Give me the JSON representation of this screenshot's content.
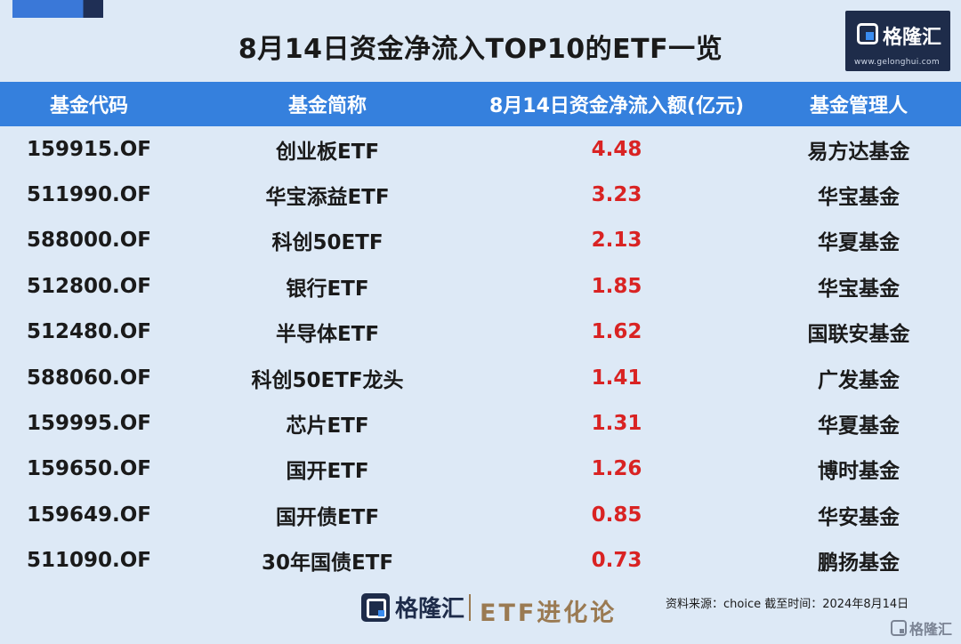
{
  "title": "8月14日资金净流入TOP10的ETF一览",
  "logo": {
    "name": "格隆汇",
    "url": "www.gelonghui.com",
    "icon": "gelonghui-logo-icon"
  },
  "table": {
    "headers": [
      "基金代码",
      "基金简称",
      "8月14日资金净流入额(亿元)",
      "基金管理人"
    ],
    "rows": [
      {
        "code": "159915.OF",
        "name": "创业板ETF",
        "inflow": "4.48",
        "manager": "易方达基金"
      },
      {
        "code": "511990.OF",
        "name": "华宝添益ETF",
        "inflow": "3.23",
        "manager": "华宝基金"
      },
      {
        "code": "588000.OF",
        "name": "科创50ETF",
        "inflow": "2.13",
        "manager": "华夏基金"
      },
      {
        "code": "512800.OF",
        "name": "银行ETF",
        "inflow": "1.85",
        "manager": "华宝基金"
      },
      {
        "code": "512480.OF",
        "name": "半导体ETF",
        "inflow": "1.62",
        "manager": "国联安基金"
      },
      {
        "code": "588060.OF",
        "name": "科创50ETF龙头",
        "inflow": "1.41",
        "manager": "广发基金"
      },
      {
        "code": "159995.OF",
        "name": "芯片ETF",
        "inflow": "1.31",
        "manager": "华夏基金"
      },
      {
        "code": "159650.OF",
        "name": "国开ETF",
        "inflow": "1.26",
        "manager": "博时基金"
      },
      {
        "code": "159649.OF",
        "name": "国开债ETF",
        "inflow": "0.85",
        "manager": "华安基金"
      },
      {
        "code": "511090.OF",
        "name": "30年国债ETF",
        "inflow": "0.73",
        "manager": "鹏扬基金"
      }
    ]
  },
  "footer": {
    "logo_text": "格隆汇",
    "brand": "ETF进化论",
    "source": "资料来源：choice   截至时间：2024年8月14日"
  },
  "watermark": "格隆汇",
  "colors": {
    "header_bg": "#3580dd",
    "page_bg": "#dde9f6",
    "inflow_text": "#d92323",
    "brand_gold": "#9a7a52",
    "logo_navy": "#1e2c4a"
  }
}
